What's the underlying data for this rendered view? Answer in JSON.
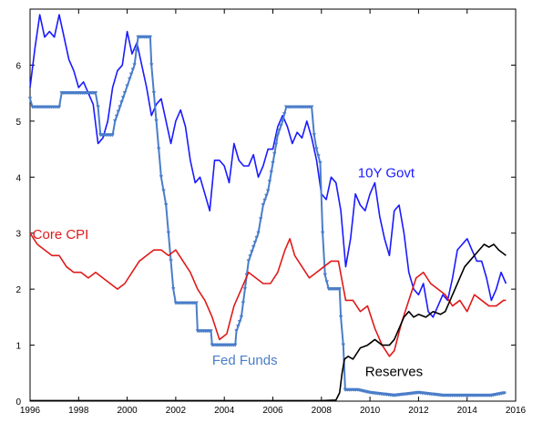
{
  "chart_data": {
    "type": "line",
    "xlim": [
      1996,
      2016
    ],
    "ylim": [
      0,
      7
    ],
    "x_ticks": [
      "1996",
      "1998",
      "2000",
      "2002",
      "2004",
      "2006",
      "2008",
      "2010",
      "2012",
      "2014",
      "2016"
    ],
    "y_ticks": [
      "0",
      "1",
      "2",
      "3",
      "4",
      "5",
      "6"
    ],
    "grid": false,
    "series": [
      {
        "name": "10Y Govt",
        "color": "#1a1aff",
        "marker": "none",
        "points": [
          [
            1996.0,
            5.6
          ],
          [
            1996.2,
            6.3
          ],
          [
            1996.4,
            6.9
          ],
          [
            1996.6,
            6.5
          ],
          [
            1996.8,
            6.6
          ],
          [
            1997.0,
            6.5
          ],
          [
            1997.2,
            6.9
          ],
          [
            1997.4,
            6.5
          ],
          [
            1997.6,
            6.1
          ],
          [
            1997.8,
            5.9
          ],
          [
            1998.0,
            5.6
          ],
          [
            1998.2,
            5.7
          ],
          [
            1998.4,
            5.5
          ],
          [
            1998.6,
            5.3
          ],
          [
            1998.8,
            4.6
          ],
          [
            1999.0,
            4.7
          ],
          [
            1999.2,
            5.0
          ],
          [
            1999.4,
            5.6
          ],
          [
            1999.6,
            5.9
          ],
          [
            1999.8,
            6.0
          ],
          [
            2000.0,
            6.6
          ],
          [
            2000.2,
            6.2
          ],
          [
            2000.4,
            6.4
          ],
          [
            2000.6,
            6.0
          ],
          [
            2000.8,
            5.6
          ],
          [
            2001.0,
            5.1
          ],
          [
            2001.2,
            5.3
          ],
          [
            2001.4,
            5.4
          ],
          [
            2001.6,
            5.0
          ],
          [
            2001.8,
            4.6
          ],
          [
            2002.0,
            5.0
          ],
          [
            2002.2,
            5.2
          ],
          [
            2002.4,
            4.9
          ],
          [
            2002.6,
            4.3
          ],
          [
            2002.8,
            3.9
          ],
          [
            2003.0,
            4.0
          ],
          [
            2003.2,
            3.7
          ],
          [
            2003.4,
            3.4
          ],
          [
            2003.6,
            4.3
          ],
          [
            2003.8,
            4.3
          ],
          [
            2004.0,
            4.2
          ],
          [
            2004.2,
            3.9
          ],
          [
            2004.4,
            4.6
          ],
          [
            2004.6,
            4.3
          ],
          [
            2004.8,
            4.2
          ],
          [
            2005.0,
            4.2
          ],
          [
            2005.2,
            4.4
          ],
          [
            2005.4,
            4.0
          ],
          [
            2005.6,
            4.2
          ],
          [
            2005.8,
            4.5
          ],
          [
            2006.0,
            4.5
          ],
          [
            2006.2,
            4.9
          ],
          [
            2006.4,
            5.1
          ],
          [
            2006.6,
            4.9
          ],
          [
            2006.8,
            4.6
          ],
          [
            2007.0,
            4.8
          ],
          [
            2007.2,
            4.7
          ],
          [
            2007.4,
            5.0
          ],
          [
            2007.6,
            4.7
          ],
          [
            2007.8,
            4.3
          ],
          [
            2008.0,
            3.7
          ],
          [
            2008.2,
            3.6
          ],
          [
            2008.4,
            4.0
          ],
          [
            2008.6,
            3.9
          ],
          [
            2008.8,
            3.4
          ],
          [
            2009.0,
            2.4
          ],
          [
            2009.2,
            2.9
          ],
          [
            2009.4,
            3.7
          ],
          [
            2009.6,
            3.5
          ],
          [
            2009.8,
            3.4
          ],
          [
            2010.0,
            3.7
          ],
          [
            2010.2,
            3.9
          ],
          [
            2010.4,
            3.3
          ],
          [
            2010.6,
            2.9
          ],
          [
            2010.8,
            2.6
          ],
          [
            2011.0,
            3.4
          ],
          [
            2011.2,
            3.5
          ],
          [
            2011.4,
            3.0
          ],
          [
            2011.6,
            2.3
          ],
          [
            2011.8,
            2.0
          ],
          [
            2012.0,
            1.9
          ],
          [
            2012.2,
            2.1
          ],
          [
            2012.4,
            1.6
          ],
          [
            2012.6,
            1.5
          ],
          [
            2012.8,
            1.7
          ],
          [
            2013.0,
            1.9
          ],
          [
            2013.2,
            1.8
          ],
          [
            2013.4,
            2.2
          ],
          [
            2013.6,
            2.7
          ],
          [
            2013.8,
            2.8
          ],
          [
            2014.0,
            2.9
          ],
          [
            2014.2,
            2.7
          ],
          [
            2014.4,
            2.5
          ],
          [
            2014.6,
            2.5
          ],
          [
            2014.8,
            2.2
          ],
          [
            2015.0,
            1.8
          ],
          [
            2015.2,
            2.0
          ],
          [
            2015.4,
            2.3
          ],
          [
            2015.6,
            2.1
          ]
        ]
      },
      {
        "name": "Fed Funds",
        "color": "#4a7dc9",
        "marker": "triangle-down",
        "points": [
          [
            1996.0,
            5.4
          ],
          [
            1996.1,
            5.25
          ],
          [
            1997.2,
            5.25
          ],
          [
            1997.3,
            5.5
          ],
          [
            1998.7,
            5.5
          ],
          [
            1998.8,
            5.25
          ],
          [
            1998.9,
            4.75
          ],
          [
            1999.4,
            4.75
          ],
          [
            1999.5,
            5.0
          ],
          [
            1999.7,
            5.25
          ],
          [
            1999.9,
            5.5
          ],
          [
            2000.1,
            5.75
          ],
          [
            2000.3,
            6.0
          ],
          [
            2000.45,
            6.5
          ],
          [
            2000.95,
            6.5
          ],
          [
            2001.0,
            6.0
          ],
          [
            2001.1,
            5.5
          ],
          [
            2001.2,
            5.0
          ],
          [
            2001.3,
            4.5
          ],
          [
            2001.4,
            4.0
          ],
          [
            2001.5,
            3.75
          ],
          [
            2001.6,
            3.5
          ],
          [
            2001.7,
            3.0
          ],
          [
            2001.8,
            2.5
          ],
          [
            2001.9,
            2.0
          ],
          [
            2002.0,
            1.75
          ],
          [
            2002.85,
            1.75
          ],
          [
            2002.9,
            1.25
          ],
          [
            2003.45,
            1.25
          ],
          [
            2003.5,
            1.0
          ],
          [
            2004.45,
            1.0
          ],
          [
            2004.5,
            1.25
          ],
          [
            2004.7,
            1.5
          ],
          [
            2004.85,
            2.0
          ],
          [
            2005.0,
            2.5
          ],
          [
            2005.2,
            2.75
          ],
          [
            2005.4,
            3.0
          ],
          [
            2005.6,
            3.5
          ],
          [
            2005.8,
            3.75
          ],
          [
            2006.0,
            4.25
          ],
          [
            2006.2,
            4.75
          ],
          [
            2006.4,
            5.0
          ],
          [
            2006.55,
            5.25
          ],
          [
            2007.6,
            5.25
          ],
          [
            2007.7,
            4.75
          ],
          [
            2007.8,
            4.5
          ],
          [
            2007.95,
            4.25
          ],
          [
            2008.05,
            3.0
          ],
          [
            2008.15,
            2.25
          ],
          [
            2008.3,
            2.0
          ],
          [
            2008.75,
            2.0
          ],
          [
            2008.8,
            1.5
          ],
          [
            2008.9,
            1.0
          ],
          [
            2008.98,
            0.2
          ],
          [
            2009.5,
            0.2
          ],
          [
            2010.0,
            0.15
          ],
          [
            2011.0,
            0.1
          ],
          [
            2012.0,
            0.15
          ],
          [
            2013.0,
            0.1
          ],
          [
            2014.0,
            0.1
          ],
          [
            2015.0,
            0.1
          ],
          [
            2015.6,
            0.15
          ]
        ]
      },
      {
        "name": "Core CPI",
        "color": "#e01a1a",
        "marker": "none",
        "points": [
          [
            1996.0,
            3.0
          ],
          [
            1996.3,
            2.8
          ],
          [
            1996.6,
            2.7
          ],
          [
            1996.9,
            2.6
          ],
          [
            1997.2,
            2.6
          ],
          [
            1997.5,
            2.4
          ],
          [
            1997.8,
            2.3
          ],
          [
            1998.1,
            2.3
          ],
          [
            1998.4,
            2.2
          ],
          [
            1998.7,
            2.3
          ],
          [
            1999.0,
            2.2
          ],
          [
            1999.3,
            2.1
          ],
          [
            1999.6,
            2.0
          ],
          [
            1999.9,
            2.1
          ],
          [
            2000.2,
            2.3
          ],
          [
            2000.5,
            2.5
          ],
          [
            2000.8,
            2.6
          ],
          [
            2001.1,
            2.7
          ],
          [
            2001.4,
            2.7
          ],
          [
            2001.7,
            2.6
          ],
          [
            2002.0,
            2.7
          ],
          [
            2002.3,
            2.5
          ],
          [
            2002.6,
            2.3
          ],
          [
            2002.9,
            2.0
          ],
          [
            2003.2,
            1.8
          ],
          [
            2003.5,
            1.5
          ],
          [
            2003.8,
            1.1
          ],
          [
            2004.1,
            1.2
          ],
          [
            2004.4,
            1.7
          ],
          [
            2004.7,
            2.0
          ],
          [
            2005.0,
            2.3
          ],
          [
            2005.3,
            2.2
          ],
          [
            2005.6,
            2.1
          ],
          [
            2005.9,
            2.1
          ],
          [
            2006.2,
            2.3
          ],
          [
            2006.5,
            2.7
          ],
          [
            2006.7,
            2.9
          ],
          [
            2006.9,
            2.6
          ],
          [
            2007.2,
            2.4
          ],
          [
            2007.5,
            2.2
          ],
          [
            2007.8,
            2.3
          ],
          [
            2008.1,
            2.4
          ],
          [
            2008.4,
            2.5
          ],
          [
            2008.7,
            2.5
          ],
          [
            2009.0,
            1.8
          ],
          [
            2009.3,
            1.8
          ],
          [
            2009.6,
            1.6
          ],
          [
            2009.9,
            1.7
          ],
          [
            2010.2,
            1.3
          ],
          [
            2010.5,
            1.0
          ],
          [
            2010.8,
            0.8
          ],
          [
            2011.0,
            0.9
          ],
          [
            2011.3,
            1.4
          ],
          [
            2011.6,
            1.8
          ],
          [
            2011.9,
            2.2
          ],
          [
            2012.2,
            2.3
          ],
          [
            2012.5,
            2.1
          ],
          [
            2012.8,
            2.0
          ],
          [
            2013.1,
            1.9
          ],
          [
            2013.4,
            1.7
          ],
          [
            2013.7,
            1.8
          ],
          [
            2014.0,
            1.6
          ],
          [
            2014.3,
            1.9
          ],
          [
            2014.6,
            1.8
          ],
          [
            2014.9,
            1.7
          ],
          [
            2015.2,
            1.7
          ],
          [
            2015.5,
            1.8
          ],
          [
            2015.6,
            1.8
          ]
        ]
      },
      {
        "name": "Reserves",
        "color": "#000000",
        "marker": "none",
        "points": [
          [
            1996.0,
            0.01
          ],
          [
            2008.0,
            0.01
          ],
          [
            2008.6,
            0.02
          ],
          [
            2008.75,
            0.15
          ],
          [
            2008.85,
            0.5
          ],
          [
            2008.95,
            0.75
          ],
          [
            2009.1,
            0.8
          ],
          [
            2009.3,
            0.75
          ],
          [
            2009.6,
            0.95
          ],
          [
            2009.9,
            1.0
          ],
          [
            2010.2,
            1.1
          ],
          [
            2010.5,
            1.0
          ],
          [
            2010.8,
            1.0
          ],
          [
            2011.0,
            1.1
          ],
          [
            2011.2,
            1.3
          ],
          [
            2011.4,
            1.5
          ],
          [
            2011.6,
            1.6
          ],
          [
            2011.8,
            1.5
          ],
          [
            2012.0,
            1.55
          ],
          [
            2012.3,
            1.5
          ],
          [
            2012.6,
            1.6
          ],
          [
            2012.9,
            1.55
          ],
          [
            2013.1,
            1.6
          ],
          [
            2013.3,
            1.8
          ],
          [
            2013.5,
            2.0
          ],
          [
            2013.7,
            2.2
          ],
          [
            2013.9,
            2.4
          ],
          [
            2014.1,
            2.5
          ],
          [
            2014.3,
            2.6
          ],
          [
            2014.5,
            2.7
          ],
          [
            2014.7,
            2.8
          ],
          [
            2014.9,
            2.75
          ],
          [
            2015.1,
            2.8
          ],
          [
            2015.3,
            2.7
          ],
          [
            2015.6,
            2.6
          ]
        ]
      }
    ],
    "labels": [
      {
        "text": "10Y Govt",
        "color": "#1a1aff",
        "x": 2009.5,
        "y": 4.0
      },
      {
        "text": "Core CPI",
        "color": "#e01a1a",
        "x": 1996.1,
        "y": 2.9
      },
      {
        "text": "Fed Funds",
        "color": "#4a7dc9",
        "x": 2003.5,
        "y": 0.65
      },
      {
        "text": "Reserves",
        "color": "#000000",
        "x": 2009.8,
        "y": 0.45
      }
    ]
  }
}
